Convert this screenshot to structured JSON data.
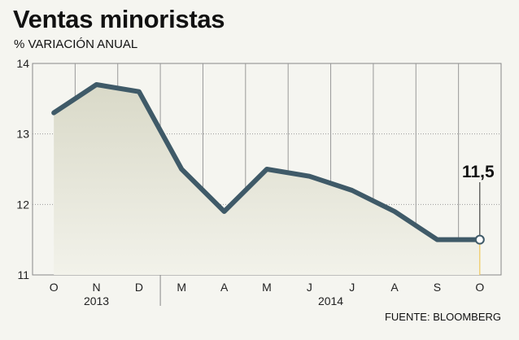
{
  "chart_data": {
    "type": "area",
    "title": "Ventas minoristas",
    "subtitle": "% VARIACIÓN ANUAL",
    "source": "FUENTE: BLOOMBERG",
    "categories": [
      "O",
      "N",
      "D",
      "M",
      "A",
      "M",
      "J",
      "J",
      "A",
      "S",
      "O"
    ],
    "year_labels": [
      {
        "label": "2013",
        "start": 0,
        "end": 2
      },
      {
        "label": "2014",
        "start": 3,
        "end": 10
      }
    ],
    "values": [
      13.3,
      13.7,
      13.6,
      12.5,
      11.9,
      12.5,
      12.4,
      12.2,
      11.9,
      11.5,
      11.5
    ],
    "yticks": [
      11,
      12,
      13,
      14
    ],
    "ylim": [
      11,
      14
    ],
    "annotation": {
      "index": 10,
      "label": "11,5"
    },
    "grid": true,
    "colors": {
      "line": "#3f5a68",
      "area_top": "#d9d9c8",
      "area_bottom": "#f2f2ea",
      "grid": "#999999",
      "background": "#f5f5f0",
      "marker_stem": "#f0c040"
    }
  }
}
